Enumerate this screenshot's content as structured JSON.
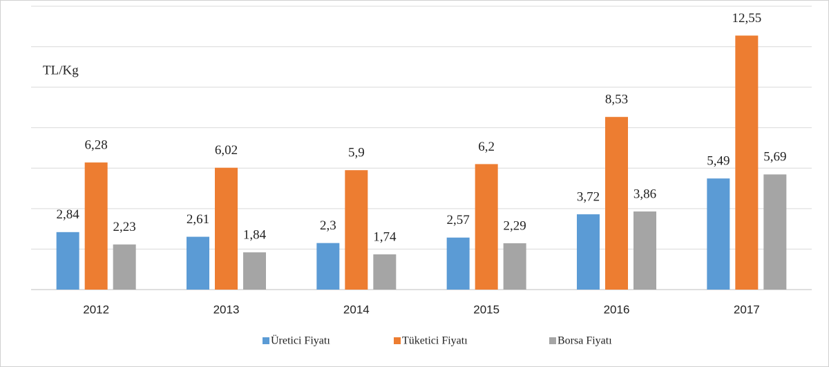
{
  "chart_data": {
    "type": "bar",
    "y_label": "TL/Kg",
    "categories": [
      "2012",
      "2013",
      "2014",
      "2015",
      "2016",
      "2017"
    ],
    "series": [
      {
        "name": "Üretici Fiyatı",
        "color": "#5b9bd5",
        "values": [
          2.84,
          2.61,
          2.3,
          2.57,
          3.72,
          5.49
        ],
        "value_labels": [
          "2,84",
          "2,61",
          "2,3",
          "2,57",
          "3,72",
          "5,49"
        ]
      },
      {
        "name": "Tüketici Fiyatı",
        "color": "#ed7d31",
        "values": [
          6.28,
          6.02,
          5.9,
          6.2,
          8.53,
          12.55
        ],
        "value_labels": [
          "6,28",
          "6,02",
          "5,9",
          "6,2",
          "8,53",
          "12,55"
        ]
      },
      {
        "name": "Borsa Fiyatı",
        "color": "#a5a5a5",
        "values": [
          2.23,
          1.84,
          1.74,
          2.29,
          3.86,
          5.69
        ],
        "value_labels": [
          "2,23",
          "1,84",
          "1,74",
          "2,29",
          "3,86",
          "5,69"
        ]
      }
    ],
    "ylim": [
      0,
      14
    ],
    "yticks": [
      0,
      2,
      4,
      6,
      8,
      10,
      12,
      14
    ],
    "grid": true,
    "legend": "bottom"
  }
}
